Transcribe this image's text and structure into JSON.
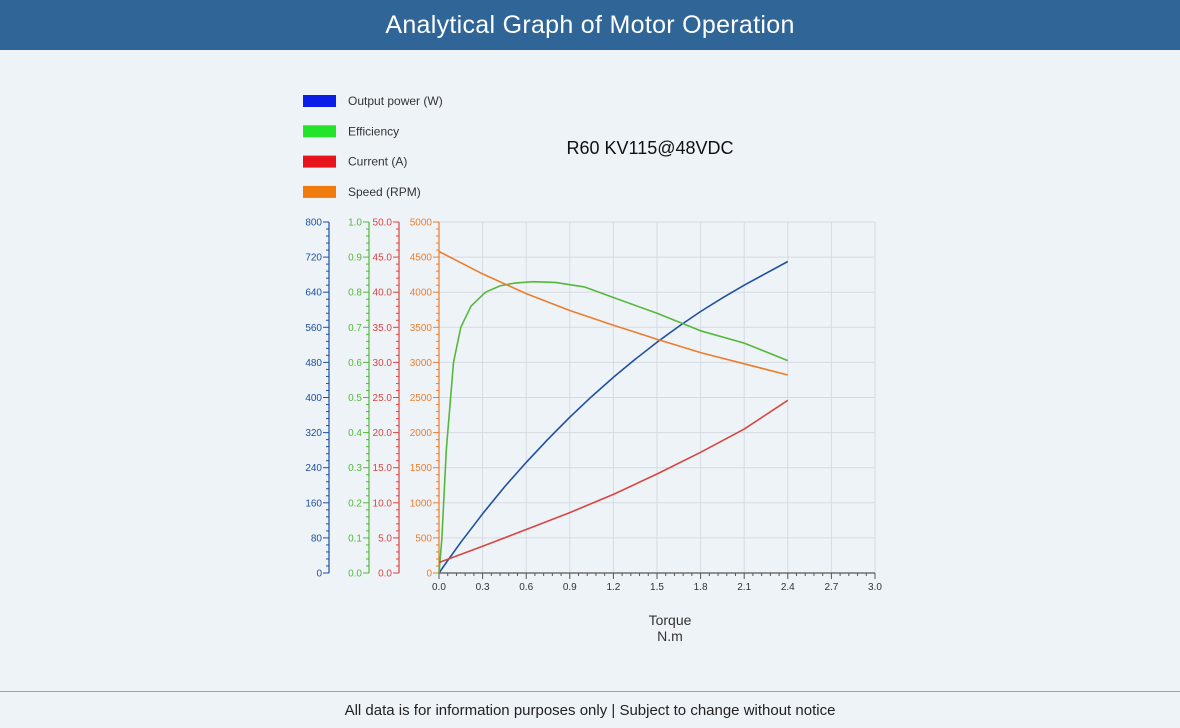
{
  "header": {
    "title": "Analytical Graph of Motor Operation"
  },
  "footer": {
    "text": "All data is for information purposes only | Subject to change without notice"
  },
  "colors": {
    "header_bg": "#2f6697",
    "power": "#1f4fa3",
    "efficiency": "#55b83a",
    "current": "#d9453f",
    "speed": "#ea7e2d",
    "legend_power": "#0a1ee8",
    "legend_efficiency": "#22e42a",
    "legend_current": "#e8141c",
    "legend_speed": "#ee7c0c"
  },
  "chart_data": {
    "type": "line",
    "title": "R60 KV115@48VDC",
    "xlabel": "Torque",
    "xunit": "N.m",
    "xlim": [
      0,
      3.0
    ],
    "xticks": [
      "0.0",
      "0.3",
      "0.6",
      "0.9",
      "1.2",
      "1.5",
      "1.8",
      "2.1",
      "2.4",
      "2.7",
      "3.0"
    ],
    "grid": true,
    "legend_position": "top-left",
    "axes": [
      {
        "series": "Output power (W)",
        "range": [
          0,
          800
        ],
        "ticks": [
          "0",
          "80",
          "160",
          "240",
          "320",
          "400",
          "480",
          "560",
          "640",
          "720",
          "800"
        ]
      },
      {
        "series": "Efficiency",
        "range": [
          0,
          1.0
        ],
        "ticks": [
          "0.0",
          "0.1",
          "0.2",
          "0.3",
          "0.4",
          "0.5",
          "0.6",
          "0.7",
          "0.8",
          "0.9",
          "1.0"
        ]
      },
      {
        "series": "Current (A)",
        "range": [
          0,
          50
        ],
        "ticks": [
          "0.0",
          "5.0",
          "10.0",
          "15.0",
          "20.0",
          "25.0",
          "30.0",
          "35.0",
          "40.0",
          "45.0",
          "50.0"
        ]
      },
      {
        "series": "Speed (RPM)",
        "range": [
          0,
          5000
        ],
        "ticks": [
          "0",
          "500",
          "1000",
          "1500",
          "2000",
          "2500",
          "3000",
          "3500",
          "4000",
          "4500",
          "5000"
        ]
      }
    ],
    "series": [
      {
        "name": "Output power (W)",
        "x": [
          0,
          0.05,
          0.15,
          0.3,
          0.45,
          0.6,
          0.75,
          0.9,
          1.05,
          1.2,
          1.35,
          1.5,
          1.65,
          1.8,
          1.95,
          2.1,
          2.25,
          2.4
        ],
        "y": [
          0,
          24,
          70,
          135,
          196,
          252,
          305,
          355,
          402,
          446,
          487,
          526,
          562,
          596,
          627,
          656,
          683,
          710
        ]
      },
      {
        "name": "Efficiency",
        "x": [
          0,
          0.02,
          0.05,
          0.1,
          0.15,
          0.22,
          0.32,
          0.42,
          0.52,
          0.65,
          0.8,
          1.0,
          1.2,
          1.5,
          1.8,
          2.1,
          2.4
        ],
        "y": [
          0,
          0.1,
          0.35,
          0.6,
          0.7,
          0.76,
          0.8,
          0.818,
          0.826,
          0.83,
          0.828,
          0.815,
          0.785,
          0.74,
          0.69,
          0.655,
          0.605
        ]
      },
      {
        "name": "Current (A)",
        "x": [
          0,
          0.3,
          0.6,
          0.9,
          1.2,
          1.5,
          1.8,
          2.1,
          2.4
        ],
        "y": [
          1.5,
          3.8,
          6.2,
          8.6,
          11.2,
          14.1,
          17.2,
          20.5,
          24.6
        ]
      },
      {
        "name": "Speed (RPM)",
        "x": [
          0,
          0.3,
          0.6,
          0.9,
          1.2,
          1.5,
          1.8,
          2.1,
          2.4
        ],
        "y": [
          4580,
          4260,
          3980,
          3740,
          3530,
          3330,
          3140,
          2980,
          2820
        ]
      }
    ]
  }
}
